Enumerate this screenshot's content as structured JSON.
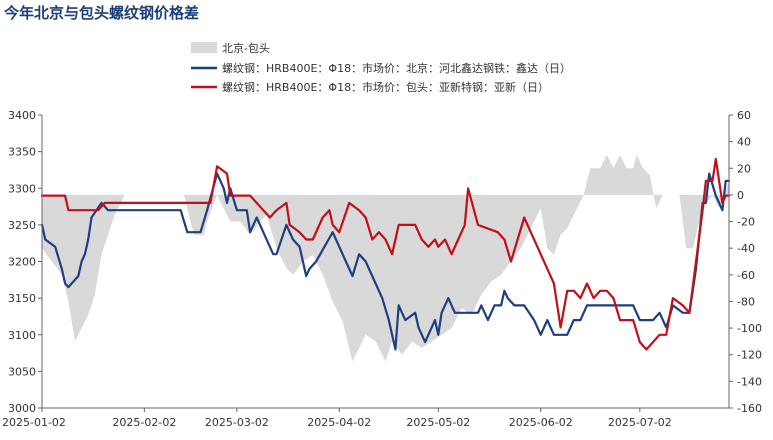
{
  "chart_data": {
    "type": "line",
    "title": "今年北京与包头螺纹钢价格差",
    "legend": [
      {
        "name": "北京-包头",
        "type": "area",
        "color": "#d9d9d9"
      },
      {
        "name": "螺纹钢：HRB400E：Φ18：市场价：北京：河北鑫达钢铁：鑫达（日）",
        "type": "line",
        "color": "#1f3f7f"
      },
      {
        "name": "螺纹钢：HRB400E：Φ18：市场价：包头：亚新特钢：亚新（日）",
        "type": "line",
        "color": "#c0101a"
      }
    ],
    "legend_position": "top-center",
    "x_ticks": [
      "2025-01-02",
      "2025-02-02",
      "2025-03-02",
      "2025-04-02",
      "2025-05-02",
      "2025-06-02",
      "2025-07-02"
    ],
    "x_range": [
      "2025-01-02",
      "2025-07-29"
    ],
    "y_left": {
      "range": [
        3000,
        3400
      ],
      "ticks": [
        3000,
        3050,
        3100,
        3150,
        3200,
        3250,
        3300,
        3350,
        3400
      ]
    },
    "y_right": {
      "range": [
        -160,
        60
      ],
      "ticks": [
        -160,
        -140,
        -120,
        -100,
        -80,
        -60,
        -40,
        -20,
        0,
        20,
        40,
        60
      ]
    },
    "grid": false,
    "series": [
      {
        "name": "北京-包头",
        "axis": "right",
        "kind": "area",
        "points": [
          [
            "2025-01-02",
            -40
          ],
          [
            "2025-01-05",
            -50
          ],
          [
            "2025-01-08",
            -60
          ],
          [
            "2025-01-10",
            -80
          ],
          [
            "2025-01-12",
            -110
          ],
          [
            "2025-01-14",
            -100
          ],
          [
            "2025-01-16",
            -90
          ],
          [
            "2025-01-18",
            -75
          ],
          [
            "2025-01-20",
            -45
          ],
          [
            "2025-01-22",
            -30
          ],
          [
            "2025-01-24",
            -15
          ],
          [
            "2025-01-27",
            0
          ],
          [
            "2025-02-14",
            0
          ],
          [
            "2025-02-17",
            -30
          ],
          [
            "2025-02-20",
            -30
          ],
          [
            "2025-02-21",
            -20
          ],
          [
            "2025-02-24",
            0
          ],
          [
            "2025-02-26",
            -10
          ],
          [
            "2025-02-28",
            -20
          ],
          [
            "2025-03-03",
            -20
          ],
          [
            "2025-03-06",
            -30
          ],
          [
            "2025-03-09",
            -20
          ],
          [
            "2025-03-11",
            -15
          ],
          [
            "2025-03-14",
            -40
          ],
          [
            "2025-03-17",
            -55
          ],
          [
            "2025-03-19",
            -60
          ],
          [
            "2025-03-22",
            -50
          ],
          [
            "2025-03-25",
            -45
          ],
          [
            "2025-03-28",
            -60
          ],
          [
            "2025-03-31",
            -80
          ],
          [
            "2025-04-03",
            -95
          ],
          [
            "2025-04-05",
            -115
          ],
          [
            "2025-04-06",
            -125
          ],
          [
            "2025-04-08",
            -115
          ],
          [
            "2025-04-10",
            -105
          ],
          [
            "2025-04-13",
            -110
          ],
          [
            "2025-04-16",
            -125
          ],
          [
            "2025-04-18",
            -110
          ],
          [
            "2025-04-21",
            -120
          ],
          [
            "2025-04-24",
            -110
          ],
          [
            "2025-04-27",
            -115
          ],
          [
            "2025-04-30",
            -110
          ],
          [
            "2025-05-03",
            -105
          ],
          [
            "2025-05-06",
            -100
          ],
          [
            "2025-05-09",
            -85
          ],
          [
            "2025-05-12",
            -90
          ],
          [
            "2025-05-15",
            -75
          ],
          [
            "2025-05-18",
            -65
          ],
          [
            "2025-05-21",
            -60
          ],
          [
            "2025-05-24",
            -50
          ],
          [
            "2025-05-27",
            -40
          ],
          [
            "2025-05-30",
            -25
          ],
          [
            "2025-06-02",
            -10
          ],
          [
            "2025-06-04",
            -40
          ],
          [
            "2025-06-06",
            -45
          ],
          [
            "2025-06-08",
            -30
          ],
          [
            "2025-06-10",
            -25
          ],
          [
            "2025-06-13",
            -10
          ],
          [
            "2025-06-15",
            0
          ],
          [
            "2025-06-17",
            20
          ],
          [
            "2025-06-20",
            20
          ],
          [
            "2025-06-22",
            30
          ],
          [
            "2025-06-24",
            20
          ],
          [
            "2025-06-26",
            30
          ],
          [
            "2025-06-28",
            20
          ],
          [
            "2025-06-30",
            20
          ],
          [
            "2025-07-01",
            30
          ],
          [
            "2025-07-03",
            20
          ],
          [
            "2025-07-05",
            15
          ],
          [
            "2025-07-07",
            -10
          ],
          [
            "2025-07-09",
            0
          ],
          [
            "2025-07-11",
            0
          ],
          [
            "2025-07-14",
            0
          ],
          [
            "2025-07-16",
            -40
          ],
          [
            "2025-07-18",
            -40
          ],
          [
            "2025-07-21",
            -10
          ],
          [
            "2025-07-24",
            0
          ],
          [
            "2025-07-26",
            -10
          ],
          [
            "2025-07-29",
            10
          ]
        ]
      },
      {
        "name": "螺纹钢：HRB400E：Φ18：市场价：北京：河北鑫达钢铁：鑫达（日）",
        "axis": "left",
        "kind": "line",
        "points": [
          [
            "2025-01-02",
            3250
          ],
          [
            "2025-01-03",
            3230
          ],
          [
            "2025-01-06",
            3220
          ],
          [
            "2025-01-08",
            3190
          ],
          [
            "2025-01-09",
            3170
          ],
          [
            "2025-01-10",
            3165
          ],
          [
            "2025-01-13",
            3180
          ],
          [
            "2025-01-14",
            3200
          ],
          [
            "2025-01-15",
            3210
          ],
          [
            "2025-01-16",
            3230
          ],
          [
            "2025-01-17",
            3260
          ],
          [
            "2025-01-20",
            3280
          ],
          [
            "2025-01-22",
            3270
          ],
          [
            "2025-02-05",
            3270
          ],
          [
            "2025-02-10",
            3270
          ],
          [
            "2025-02-13",
            3270
          ],
          [
            "2025-02-15",
            3240
          ],
          [
            "2025-02-19",
            3240
          ],
          [
            "2025-02-21",
            3270
          ],
          [
            "2025-02-24",
            3320
          ],
          [
            "2025-02-26",
            3300
          ],
          [
            "2025-02-27",
            3280
          ],
          [
            "2025-02-28",
            3300
          ],
          [
            "2025-03-02",
            3270
          ],
          [
            "2025-03-05",
            3270
          ],
          [
            "2025-03-06",
            3240
          ],
          [
            "2025-03-08",
            3260
          ],
          [
            "2025-03-10",
            3240
          ],
          [
            "2025-03-13",
            3210
          ],
          [
            "2025-03-14",
            3210
          ],
          [
            "2025-03-17",
            3250
          ],
          [
            "2025-03-19",
            3230
          ],
          [
            "2025-03-21",
            3220
          ],
          [
            "2025-03-23",
            3180
          ],
          [
            "2025-03-24",
            3190
          ],
          [
            "2025-03-26",
            3200
          ],
          [
            "2025-03-31",
            3240
          ],
          [
            "2025-04-02",
            3220
          ],
          [
            "2025-04-04",
            3200
          ],
          [
            "2025-04-06",
            3180
          ],
          [
            "2025-04-08",
            3210
          ],
          [
            "2025-04-10",
            3200
          ],
          [
            "2025-04-13",
            3170
          ],
          [
            "2025-04-15",
            3150
          ],
          [
            "2025-04-17",
            3120
          ],
          [
            "2025-04-19",
            3080
          ],
          [
            "2025-04-20",
            3140
          ],
          [
            "2025-04-22",
            3120
          ],
          [
            "2025-04-25",
            3130
          ],
          [
            "2025-04-26",
            3110
          ],
          [
            "2025-04-28",
            3090
          ],
          [
            "2025-05-01",
            3120
          ],
          [
            "2025-05-02",
            3100
          ],
          [
            "2025-05-03",
            3130
          ],
          [
            "2025-05-05",
            3150
          ],
          [
            "2025-05-07",
            3130
          ],
          [
            "2025-05-14",
            3130
          ],
          [
            "2025-05-15",
            3140
          ],
          [
            "2025-05-17",
            3120
          ],
          [
            "2025-05-19",
            3140
          ],
          [
            "2025-05-21",
            3140
          ],
          [
            "2025-05-22",
            3160
          ],
          [
            "2025-05-23",
            3150
          ],
          [
            "2025-05-25",
            3140
          ],
          [
            "2025-05-28",
            3140
          ],
          [
            "2025-05-31",
            3120
          ],
          [
            "2025-06-02",
            3100
          ],
          [
            "2025-06-04",
            3120
          ],
          [
            "2025-06-06",
            3100
          ],
          [
            "2025-06-10",
            3100
          ],
          [
            "2025-06-12",
            3120
          ],
          [
            "2025-06-14",
            3120
          ],
          [
            "2025-06-16",
            3140
          ],
          [
            "2025-06-18",
            3140
          ],
          [
            "2025-06-30",
            3140
          ],
          [
            "2025-07-02",
            3120
          ],
          [
            "2025-07-06",
            3120
          ],
          [
            "2025-07-08",
            3130
          ],
          [
            "2025-07-10",
            3110
          ],
          [
            "2025-07-12",
            3140
          ],
          [
            "2025-07-15",
            3130
          ],
          [
            "2025-07-17",
            3130
          ],
          [
            "2025-07-19",
            3190
          ],
          [
            "2025-07-21",
            3280
          ],
          [
            "2025-07-22",
            3280
          ],
          [
            "2025-07-23",
            3320
          ],
          [
            "2025-07-25",
            3290
          ],
          [
            "2025-07-27",
            3270
          ],
          [
            "2025-07-28",
            3310
          ],
          [
            "2025-07-29",
            3310
          ]
        ]
      },
      {
        "name": "螺纹钢：HRB400E：Φ18：市场价：包头：亚新特钢：亚新（日）",
        "axis": "left",
        "kind": "line",
        "points": [
          [
            "2025-01-02",
            3290
          ],
          [
            "2025-01-09",
            3290
          ],
          [
            "2025-01-10",
            3270
          ],
          [
            "2025-01-17",
            3270
          ],
          [
            "2025-01-19",
            3270
          ],
          [
            "2025-01-21",
            3280
          ],
          [
            "2025-02-01",
            3280
          ],
          [
            "2025-02-21",
            3280
          ],
          [
            "2025-02-22",
            3280
          ],
          [
            "2025-02-24",
            3330
          ],
          [
            "2025-02-27",
            3320
          ],
          [
            "2025-02-28",
            3290
          ],
          [
            "2025-03-03",
            3290
          ],
          [
            "2025-03-06",
            3290
          ],
          [
            "2025-03-08",
            3280
          ],
          [
            "2025-03-10",
            3270
          ],
          [
            "2025-03-12",
            3260
          ],
          [
            "2025-03-14",
            3270
          ],
          [
            "2025-03-17",
            3280
          ],
          [
            "2025-03-18",
            3250
          ],
          [
            "2025-03-21",
            3240
          ],
          [
            "2025-03-23",
            3230
          ],
          [
            "2025-03-25",
            3230
          ],
          [
            "2025-03-28",
            3260
          ],
          [
            "2025-03-30",
            3270
          ],
          [
            "2025-03-31",
            3250
          ],
          [
            "2025-04-02",
            3240
          ],
          [
            "2025-04-05",
            3280
          ],
          [
            "2025-04-08",
            3270
          ],
          [
            "2025-04-10",
            3260
          ],
          [
            "2025-04-12",
            3230
          ],
          [
            "2025-04-14",
            3240
          ],
          [
            "2025-04-16",
            3230
          ],
          [
            "2025-04-18",
            3210
          ],
          [
            "2025-04-20",
            3250
          ],
          [
            "2025-04-25",
            3250
          ],
          [
            "2025-04-27",
            3230
          ],
          [
            "2025-04-29",
            3220
          ],
          [
            "2025-05-01",
            3230
          ],
          [
            "2025-05-02",
            3220
          ],
          [
            "2025-05-04",
            3230
          ],
          [
            "2025-05-06",
            3210
          ],
          [
            "2025-05-08",
            3230
          ],
          [
            "2025-05-10",
            3250
          ],
          [
            "2025-05-11",
            3300
          ],
          [
            "2025-05-14",
            3250
          ],
          [
            "2025-05-20",
            3240
          ],
          [
            "2025-05-22",
            3230
          ],
          [
            "2025-05-24",
            3200
          ],
          [
            "2025-05-26",
            3230
          ],
          [
            "2025-05-28",
            3260
          ],
          [
            "2025-05-30",
            3240
          ],
          [
            "2025-06-02",
            3210
          ],
          [
            "2025-06-04",
            3190
          ],
          [
            "2025-06-06",
            3170
          ],
          [
            "2025-06-08",
            3110
          ],
          [
            "2025-06-10",
            3160
          ],
          [
            "2025-06-12",
            3160
          ],
          [
            "2025-06-14",
            3150
          ],
          [
            "2025-06-16",
            3170
          ],
          [
            "2025-06-18",
            3150
          ],
          [
            "2025-06-20",
            3160
          ],
          [
            "2025-06-22",
            3160
          ],
          [
            "2025-06-24",
            3150
          ],
          [
            "2025-06-26",
            3120
          ],
          [
            "2025-06-30",
            3120
          ],
          [
            "2025-07-02",
            3090
          ],
          [
            "2025-07-04",
            3080
          ],
          [
            "2025-07-06",
            3090
          ],
          [
            "2025-07-08",
            3100
          ],
          [
            "2025-07-10",
            3100
          ],
          [
            "2025-07-12",
            3150
          ],
          [
            "2025-07-15",
            3140
          ],
          [
            "2025-07-17",
            3130
          ],
          [
            "2025-07-19",
            3200
          ],
          [
            "2025-07-21",
            3270
          ],
          [
            "2025-07-22",
            3310
          ],
          [
            "2025-07-24",
            3310
          ],
          [
            "2025-07-25",
            3340
          ],
          [
            "2025-07-26",
            3310
          ],
          [
            "2025-07-27",
            3280
          ],
          [
            "2025-07-28",
            3290
          ],
          [
            "2025-07-29",
            3290
          ]
        ]
      }
    ]
  }
}
